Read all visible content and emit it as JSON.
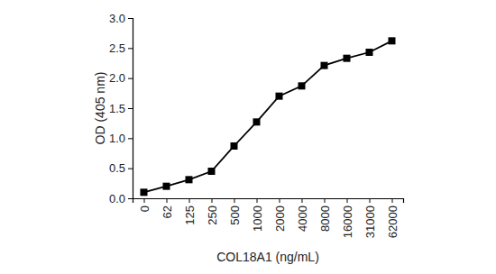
{
  "chart_data": {
    "type": "line",
    "x_label": "COL18A1 (ng/mL)",
    "y_label": "OD (405 nm)",
    "categories": [
      "0",
      "62",
      "125",
      "250",
      "500",
      "1000",
      "2000",
      "4000",
      "8000",
      "16000",
      "31000",
      "62000"
    ],
    "values": [
      0.1,
      0.2,
      0.31,
      0.45,
      0.87,
      1.27,
      1.7,
      1.87,
      2.21,
      2.33,
      2.43,
      2.62
    ],
    "color": "#000000",
    "marker": "square",
    "line_style": "solid",
    "grid": false,
    "ylim": [
      0,
      3
    ],
    "yticks": [
      {
        "value": 0,
        "label": "0.0"
      },
      {
        "value": 0.5,
        "label": "0.5"
      },
      {
        "value": 1,
        "label": "1.0"
      },
      {
        "value": 1.5,
        "label": "1.5"
      },
      {
        "value": 2,
        "label": "2.0"
      },
      {
        "value": 2.5,
        "label": "2.5"
      },
      {
        "value": 3,
        "label": "3.0"
      }
    ]
  }
}
